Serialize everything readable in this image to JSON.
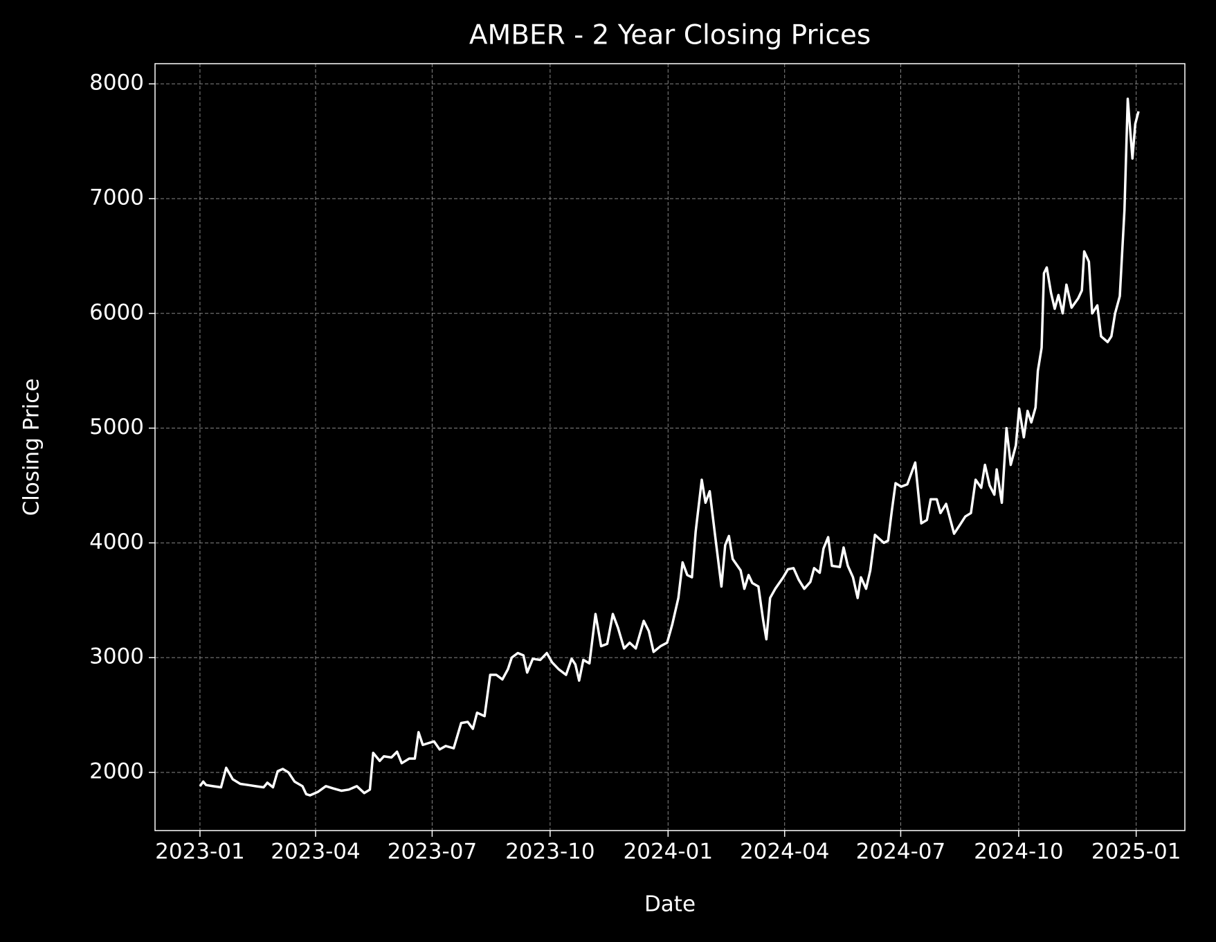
{
  "chart_data": {
    "type": "line",
    "title": "AMBER - 2 Year Closing Prices",
    "x_label": "Date",
    "y_label": "Closing Price",
    "x": [
      2023.0,
      2023.007,
      2023.013,
      2023.028,
      2023.045,
      2023.056,
      2023.07,
      2023.086,
      2023.103,
      2023.119,
      2023.136,
      2023.144,
      2023.156,
      2023.166,
      2023.177,
      2023.189,
      2023.202,
      2023.219,
      2023.227,
      2023.235,
      2023.252,
      2023.269,
      2023.285,
      2023.302,
      2023.318,
      2023.335,
      2023.351,
      2023.363,
      2023.37,
      2023.384,
      2023.393,
      2023.409,
      2023.421,
      2023.431,
      2023.447,
      2023.459,
      2023.467,
      2023.476,
      2023.484,
      2023.5,
      2023.512,
      2023.525,
      2023.542,
      2023.558,
      2023.572,
      2023.583,
      2023.592,
      2023.608,
      2023.62,
      2023.633,
      2023.646,
      2023.658,
      2023.666,
      2023.679,
      2023.691,
      2023.699,
      2023.711,
      2023.727,
      2023.741,
      2023.752,
      2023.766,
      2023.782,
      2023.794,
      2023.802,
      2023.81,
      2023.819,
      2023.832,
      2023.845,
      2023.857,
      2023.87,
      2023.882,
      2023.893,
      2023.906,
      2023.918,
      2023.931,
      2023.948,
      2023.959,
      2023.969,
      2023.984,
      2023.998,
      2024.009,
      2024.022,
      2024.031,
      2024.041,
      2024.051,
      2024.059,
      2024.072,
      2024.08,
      2024.089,
      2024.1,
      2024.114,
      2024.122,
      2024.13,
      2024.138,
      2024.155,
      2024.163,
      2024.172,
      2024.18,
      2024.193,
      2024.203,
      2024.21,
      2024.218,
      2024.229,
      2024.246,
      2024.256,
      2024.268,
      2024.279,
      2024.291,
      2024.304,
      2024.312,
      2024.324,
      2024.332,
      2024.342,
      2024.35,
      2024.367,
      2024.375,
      2024.384,
      2024.395,
      2024.405,
      2024.412,
      2024.423,
      2024.432,
      2024.442,
      2024.461,
      2024.47,
      2024.478,
      2024.486,
      2024.498,
      2024.511,
      2024.528,
      2024.541,
      2024.553,
      2024.561,
      2024.574,
      2024.582,
      2024.594,
      2024.611,
      2024.624,
      2024.635,
      2024.647,
      2024.657,
      2024.669,
      2024.677,
      2024.687,
      2024.697,
      2024.702,
      2024.713,
      2024.723,
      2024.732,
      2024.743,
      2024.75,
      2024.76,
      2024.768,
      2024.776,
      2024.785,
      2024.79,
      2024.798,
      2024.803,
      2024.809,
      2024.818,
      2024.826,
      2024.834,
      2024.843,
      2024.851,
      2024.862,
      2024.876,
      2024.884,
      2024.889,
      2024.899,
      2024.906,
      2024.917,
      2024.925,
      2024.939,
      2024.947,
      2024.955,
      2024.965,
      2024.975,
      2024.982,
      2024.992,
      2024.998,
      2025.005
    ],
    "series": [
      {
        "color": "#ffffff",
        "values": [
          1880,
          1920,
          1890,
          1880,
          1870,
          2040,
          1940,
          1900,
          1890,
          1880,
          1870,
          1910,
          1870,
          2010,
          2030,
          2000,
          1920,
          1880,
          1810,
          1800,
          1830,
          1880,
          1860,
          1840,
          1850,
          1880,
          1820,
          1850,
          2170,
          2100,
          2140,
          2130,
          2180,
          2080,
          2120,
          2120,
          2350,
          2240,
          2250,
          2270,
          2200,
          2230,
          2210,
          2430,
          2440,
          2380,
          2520,
          2490,
          2850,
          2850,
          2810,
          2900,
          3000,
          3040,
          3020,
          2870,
          2990,
          2980,
          3040,
          2960,
          2900,
          2850,
          2990,
          2940,
          2800,
          2980,
          2950,
          3380,
          3100,
          3120,
          3380,
          3260,
          3080,
          3130,
          3080,
          3320,
          3230,
          3050,
          3100,
          3130,
          3290,
          3520,
          3830,
          3720,
          3700,
          4100,
          4550,
          4350,
          4450,
          4080,
          3620,
          3980,
          4060,
          3860,
          3760,
          3600,
          3720,
          3650,
          3620,
          3330,
          3160,
          3520,
          3600,
          3700,
          3770,
          3780,
          3680,
          3600,
          3660,
          3780,
          3740,
          3950,
          4050,
          3800,
          3790,
          3960,
          3800,
          3700,
          3520,
          3700,
          3600,
          3760,
          4070,
          4000,
          4020,
          4280,
          4520,
          4490,
          4510,
          4700,
          4170,
          4200,
          4380,
          4380,
          4260,
          4340,
          4080,
          4160,
          4230,
          4260,
          4550,
          4480,
          4680,
          4500,
          4420,
          4640,
          4350,
          5000,
          4680,
          4850,
          5170,
          4920,
          5150,
          5050,
          5180,
          5500,
          5700,
          6350,
          6400,
          6180,
          6040,
          6160,
          6000,
          6250,
          6050,
          6130,
          6200,
          6540,
          6450,
          6000,
          6070,
          5800,
          5750,
          5800,
          6000,
          6150,
          6900,
          7870,
          7350,
          7650,
          7760
        ]
      }
    ],
    "xlim": [
      2022.904,
      2025.104
    ],
    "ylim": [
      1493,
      8176
    ],
    "xticks": [
      {
        "value": 2023.0,
        "label": "2023-01"
      },
      {
        "value": 2023.247,
        "label": "2023-04"
      },
      {
        "value": 2023.496,
        "label": "2023-07"
      },
      {
        "value": 2023.748,
        "label": "2023-10"
      },
      {
        "value": 2024.0,
        "label": "2024-01"
      },
      {
        "value": 2024.249,
        "label": "2024-04"
      },
      {
        "value": 2024.497,
        "label": "2024-07"
      },
      {
        "value": 2024.749,
        "label": "2024-10"
      },
      {
        "value": 2025.0,
        "label": "2025-01"
      }
    ],
    "yticks": [
      2000,
      3000,
      4000,
      5000,
      6000,
      7000,
      8000
    ],
    "grid": true
  }
}
